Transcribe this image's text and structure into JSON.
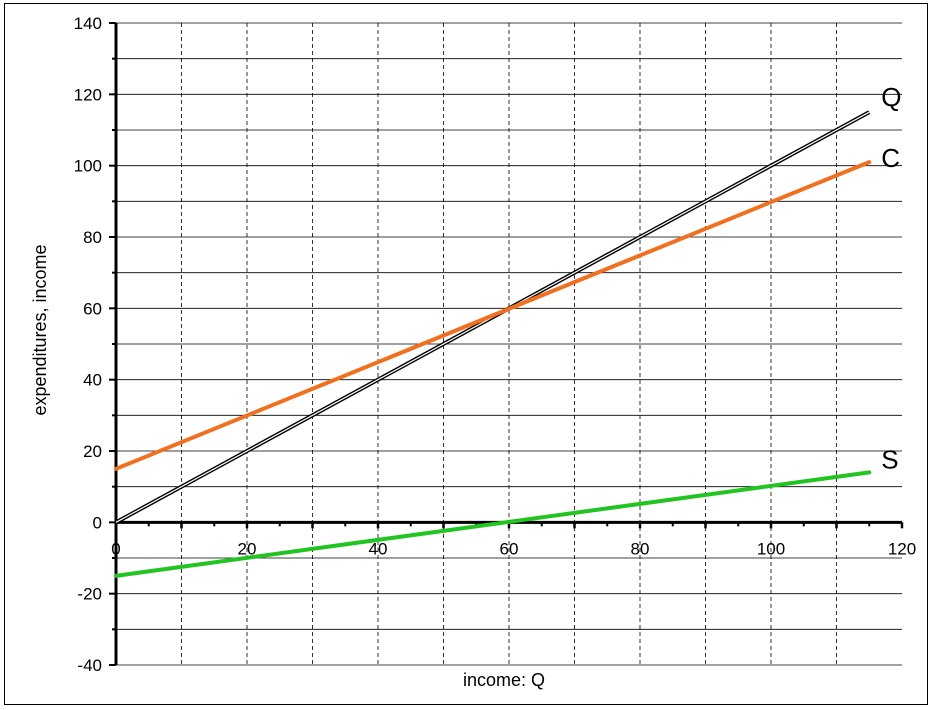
{
  "chart_data": {
    "type": "line",
    "xlabel": "income: Q",
    "ylabel": "expenditures, income",
    "xlim": [
      0,
      120
    ],
    "ylim": [
      -40,
      140
    ],
    "x_ticks": [
      0,
      20,
      40,
      60,
      80,
      100,
      120
    ],
    "y_ticks": [
      140,
      120,
      100,
      80,
      60,
      40,
      20,
      0,
      -20,
      -40
    ],
    "x_tick_labels": [
      "0",
      "20",
      "40",
      "60",
      "80",
      "100",
      "120"
    ],
    "y_tick_labels": [
      "140",
      "120",
      "100",
      "80",
      "60",
      "40",
      "20",
      "0",
      "-20",
      "-40"
    ],
    "grid": true,
    "series": [
      {
        "name": "Q",
        "x": [
          0,
          115
        ],
        "y": [
          0,
          115
        ],
        "color": "#000000"
      },
      {
        "name": "C",
        "x": [
          0,
          115
        ],
        "y": [
          15,
          101
        ],
        "color": "#f07020"
      },
      {
        "name": "S",
        "x": [
          0,
          115
        ],
        "y": [
          -15,
          14
        ],
        "color": "#22c422"
      }
    ]
  }
}
